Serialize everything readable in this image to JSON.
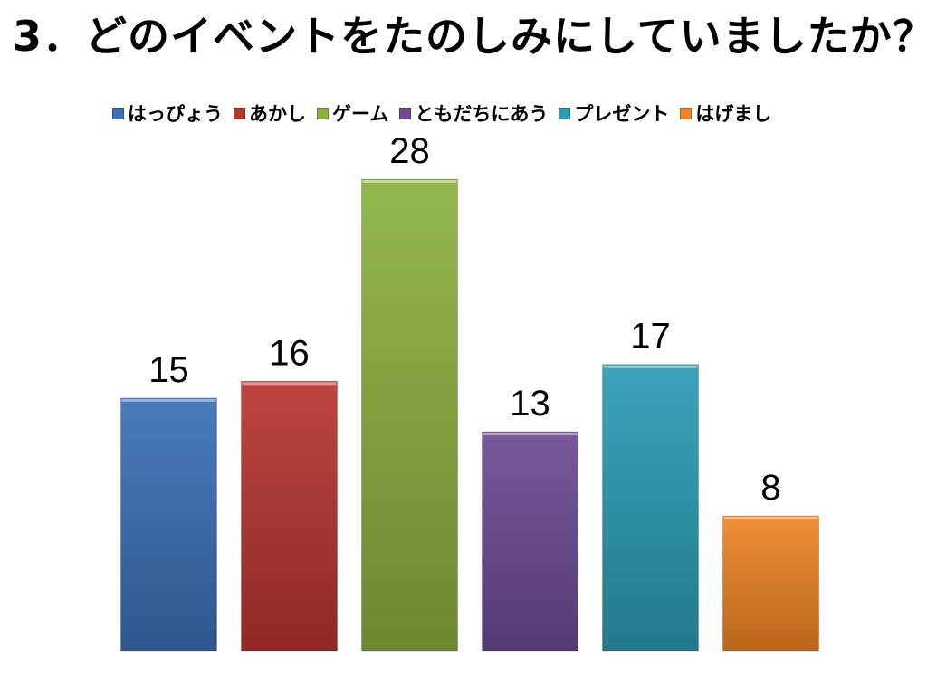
{
  "slide": {
    "title": "3．どのイベントをたのしみにしていましたか？"
  },
  "chart_data": {
    "type": "bar",
    "title": "",
    "xlabel": "",
    "ylabel": "",
    "ylim": [
      0,
      28
    ],
    "grid": false,
    "legend_position": "top",
    "series": [
      {
        "name": "はっぴょう",
        "value": 15,
        "color": "#3b6fb6"
      },
      {
        "name": "あかし",
        "value": 16,
        "color": "#b7352f"
      },
      {
        "name": "ゲーム",
        "value": 28,
        "color": "#8bb03f"
      },
      {
        "name": "ともだちにあう",
        "value": 13,
        "color": "#6c4b93"
      },
      {
        "name": "プレゼント",
        "value": 17,
        "color": "#2b9bb4"
      },
      {
        "name": "はげまし",
        "value": 8,
        "color": "#ee8424"
      }
    ]
  }
}
